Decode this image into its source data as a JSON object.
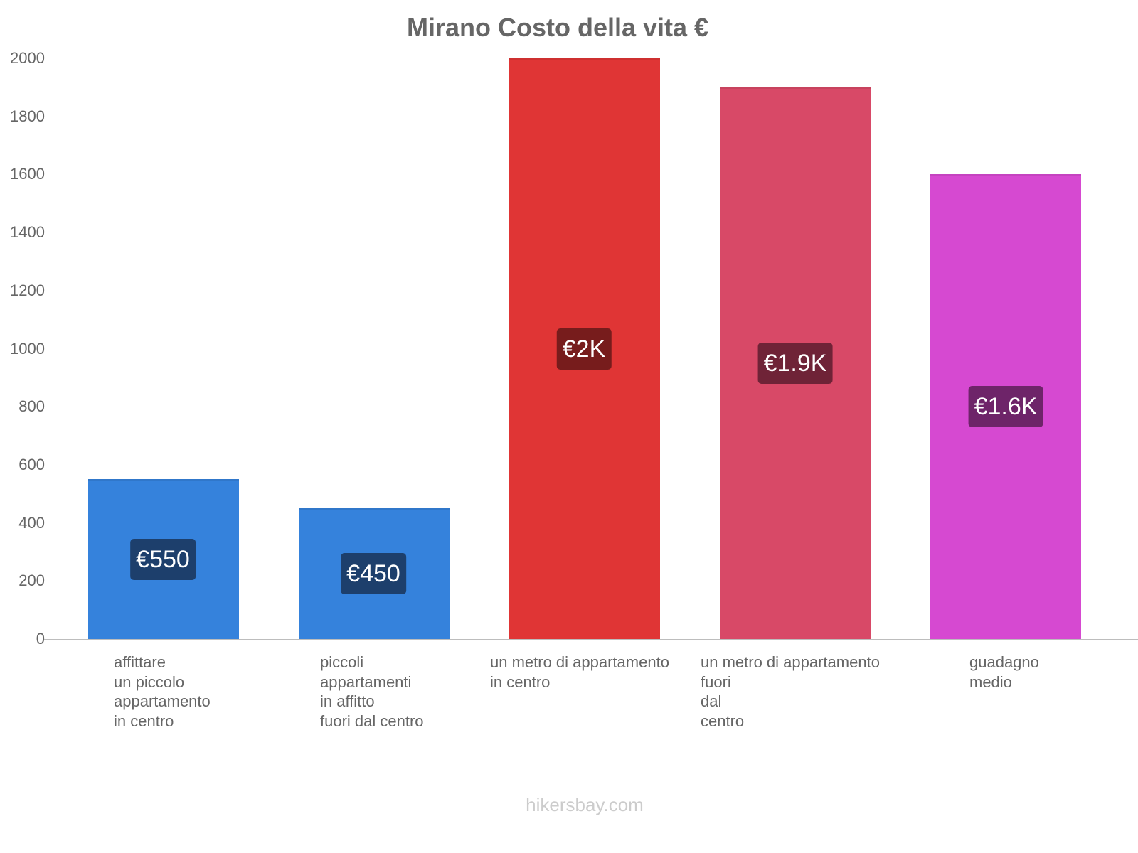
{
  "chart_data": {
    "type": "bar",
    "title": "Mirano Costo della vita €",
    "xlabel": "",
    "ylabel": "",
    "ylim": [
      0,
      2000
    ],
    "yticks": [
      0,
      200,
      400,
      600,
      800,
      1000,
      1200,
      1400,
      1600,
      1800,
      2000
    ],
    "grid": false,
    "legend": null,
    "categories": [
      "affittare un piccolo appartamento in centro",
      "piccoli appartamenti in affitto fuori dal centro",
      "un metro di appartamento in centro",
      "un metro di appartamento fuori dal centro",
      "guadagno medio"
    ],
    "values": [
      550,
      450,
      2000,
      1900,
      1600
    ],
    "data_labels": [
      "€550",
      "€450",
      "€2K",
      "€1.9K",
      "€1.6K"
    ],
    "colors": [
      "#3582dc",
      "#3582dc",
      "#e03535",
      "#d84967",
      "#d649d1"
    ],
    "label_colors": [
      "#1d3f6c",
      "#1d3f6c",
      "#771c1c",
      "#6f2337",
      "#6e2469"
    ],
    "source": "hikersbay.com"
  },
  "title": "Mirano Costo della vita €",
  "yticks": [
    "0",
    "200",
    "400",
    "600",
    "800",
    "1000",
    "1200",
    "1400",
    "1600",
    "1800",
    "2000"
  ],
  "bars": [
    {
      "label_lines": "affittare\nun piccolo\nappartamento\nin centro",
      "value_label": "€550"
    },
    {
      "label_lines": "piccoli\nappartamenti\nin affitto\nfuori dal centro",
      "value_label": "€450"
    },
    {
      "label_lines": "un metro di appartamento\nin centro",
      "value_label": "€2K"
    },
    {
      "label_lines": "un metro di appartamento\nfuori\ndal\ncentro",
      "value_label": "€1.9K"
    },
    {
      "label_lines": "guadagno\nmedio",
      "value_label": "€1.6K"
    }
  ],
  "footer": "hikersbay.com"
}
